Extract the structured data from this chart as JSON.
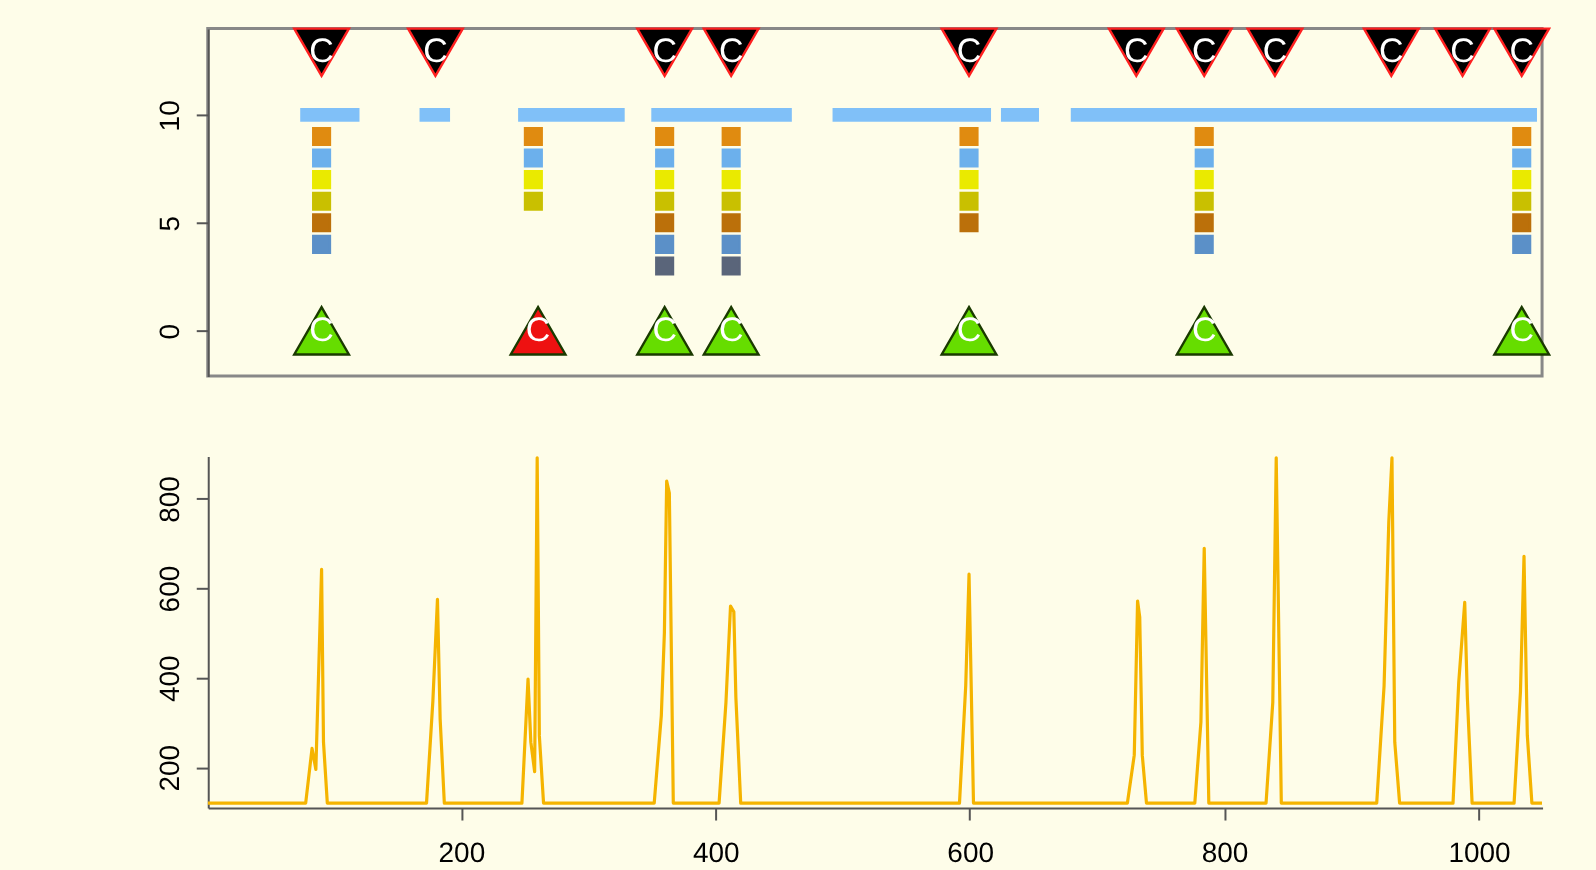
{
  "chart_data": [
    {
      "type": "scatter",
      "xlim": [
        1,
        1050
      ],
      "ylim": [
        -2.1,
        14
      ],
      "yticks": [
        0,
        5,
        10
      ],
      "tick_labels": "y",
      "grid": false,
      "series": [
        {
          "type": "line",
          "color": "#80c0f8",
          "x": [
            73.7,
            120.3
          ],
          "values": [
            10,
            10
          ]
        },
        {
          "type": "line",
          "color": "#80c0f8",
          "x": [
            167.5,
            191.5
          ],
          "values": [
            10,
            10
          ]
        },
        {
          "type": "line",
          "color": "#80c0f8",
          "x": [
            245,
            328.8
          ],
          "values": [
            10,
            10
          ]
        },
        {
          "type": "line",
          "color": "#80c0f8",
          "x": [
            349.7,
            460.2
          ],
          "values": [
            10,
            10
          ]
        },
        {
          "type": "line",
          "color": "#80c0f8",
          "x": [
            492.2,
            616.8
          ],
          "values": [
            10,
            10
          ]
        },
        {
          "type": "line",
          "color": "#80c0f8",
          "x": [
            624.6,
            654.5
          ],
          "values": [
            10,
            10
          ]
        },
        {
          "type": "line",
          "color": "#80c0f8",
          "x": [
            679.5,
            1046
          ],
          "values": [
            10,
            10
          ]
        },
        {
          "type": "scatter",
          "marker": "square",
          "color": "#e08b10",
          "x": [
            90.5,
            257,
            360.2,
            412.5,
            599.5,
            784.4,
            1034
          ],
          "values": [
            9,
            9,
            9,
            9,
            9,
            9,
            9
          ]
        },
        {
          "type": "scatter",
          "marker": "square",
          "color": "#6cb0ec",
          "x": [
            90.5,
            257,
            360.2,
            412.5,
            599.5,
            784.4,
            1034
          ],
          "values": [
            8,
            8,
            8,
            8,
            8,
            8,
            8
          ]
        },
        {
          "type": "scatter",
          "marker": "square",
          "color": "#eaea00",
          "x": [
            90.5,
            257,
            360.2,
            412.5,
            599.5,
            784.4,
            1034
          ],
          "values": [
            7,
            7,
            7,
            7,
            7,
            7,
            7
          ]
        },
        {
          "type": "scatter",
          "marker": "square",
          "color": "#c9c000",
          "x": [
            90.5,
            257,
            360.2,
            412.5,
            599.5,
            784.4,
            1034
          ],
          "values": [
            6,
            6,
            6,
            6,
            6,
            6,
            6
          ]
        },
        {
          "type": "scatter",
          "marker": "square",
          "color": "#bb700a",
          "x": [
            90.5,
            360.2,
            412.5,
            599.5,
            784.4,
            1034
          ],
          "values": [
            5,
            5,
            5,
            5,
            5,
            5
          ]
        },
        {
          "type": "scatter",
          "marker": "square",
          "color": "#5b90c8",
          "x": [
            90.5,
            360.2,
            412.5,
            784.4,
            1034
          ],
          "values": [
            4,
            4,
            4,
            4,
            4
          ]
        },
        {
          "type": "scatter",
          "marker": "square",
          "color": "#5a657a",
          "x": [
            360.2,
            412.5
          ],
          "values": [
            3,
            3
          ]
        },
        {
          "type": "scatter",
          "marker": "triangle-down",
          "color": "#000000",
          "x": [
            90.5,
            180,
            360.2,
            412.5,
            599.5,
            731,
            784.4,
            840,
            931.5,
            987.5,
            1034
          ],
          "values": [
            12.9,
            12.9,
            12.9,
            12.9,
            12.9,
            12.9,
            12.9,
            12.9,
            12.9,
            12.9,
            12.9
          ]
        },
        {
          "type": "scatter",
          "marker": "triangle",
          "color": "#66dd00",
          "x": [
            90.5,
            360.2,
            412.5,
            599.5,
            784.4,
            1034
          ],
          "values": [
            0,
            0,
            0,
            0,
            0,
            0
          ]
        },
        {
          "type": "scatter",
          "marker": "triangle",
          "color": "#ee1111",
          "x": [
            260.7
          ],
          "values": [
            0
          ]
        }
      ],
      "annotations": [
        {
          "text": "C",
          "x": 90.5,
          "y": 12.9
        },
        {
          "text": "C",
          "x": 180,
          "y": 12.9
        },
        {
          "text": "C",
          "x": 360.2,
          "y": 12.9
        },
        {
          "text": "C",
          "x": 412.5,
          "y": 12.9
        },
        {
          "text": "C",
          "x": 599.5,
          "y": 12.9
        },
        {
          "text": "C",
          "x": 731,
          "y": 12.9
        },
        {
          "text": "C",
          "x": 784.4,
          "y": 12.9
        },
        {
          "text": "C",
          "x": 840,
          "y": 12.9
        },
        {
          "text": "C",
          "x": 931.5,
          "y": 12.9
        },
        {
          "text": "C",
          "x": 987.5,
          "y": 12.9
        },
        {
          "text": "C",
          "x": 1034,
          "y": 12.9
        },
        {
          "text": "C",
          "x": 90.5,
          "y": 0
        },
        {
          "text": "C",
          "x": 260.7,
          "y": 0
        },
        {
          "text": "C",
          "x": 360.2,
          "y": 0
        },
        {
          "text": "C",
          "x": 412.5,
          "y": 0
        },
        {
          "text": "C",
          "x": 599.5,
          "y": 0
        },
        {
          "text": "C",
          "x": 784.4,
          "y": 0
        },
        {
          "text": "C",
          "x": 1034,
          "y": 0
        }
      ]
    },
    {
      "type": "line",
      "xlim": [
        1,
        1050
      ],
      "ylim": [
        110,
        895
      ],
      "xticks": [
        200,
        400,
        600,
        800,
        1000
      ],
      "yticks": [
        200,
        400,
        600,
        800
      ],
      "grid": false,
      "x": [
        1,
        78,
        83,
        86,
        90.5,
        92,
        95,
        173,
        178,
        181.6,
        183.7,
        187,
        248,
        252.8,
        255,
        258,
        260,
        261.7,
        265,
        352,
        357.6,
        360,
        361.8,
        363.9,
        367,
        403,
        408.4,
        412,
        414.6,
        416.2,
        420,
        592,
        596.9,
        599.5,
        603,
        724,
        729.4,
        732,
        733.7,
        735.7,
        739,
        777,
        781.8,
        784.4,
        788,
        833,
        838.3,
        841,
        845,
        920,
        925.8,
        929.5,
        932,
        934.2,
        938,
        980,
        984.5,
        989.2,
        991.3,
        995,
        1028,
        1033,
        1035.8,
        1038.4,
        1042,
        1050
      ],
      "series": [
        {
          "color": "#f5b400",
          "values": [
            120,
            120,
            242,
            195,
            642,
            256,
            120,
            120,
            348,
            575,
            308,
            120,
            120,
            397,
            256,
            190,
            891,
            270,
            120,
            120,
            316,
            500,
            839,
            812,
            120,
            120,
            345,
            560,
            547,
            356,
            120,
            120,
            382,
            631,
            120,
            120,
            227,
            571,
            535,
            227,
            120,
            120,
            301,
            689,
            120,
            120,
            345,
            891,
            120,
            120,
            382,
            748,
            891,
            256,
            120,
            120,
            390,
            568,
            353,
            120,
            120,
            368,
            671,
            271,
            120,
            120
          ]
        }
      ]
    }
  ]
}
